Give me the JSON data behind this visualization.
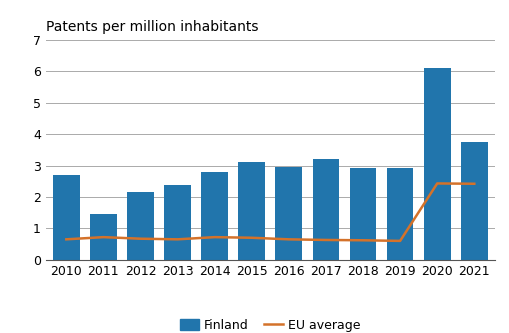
{
  "years": [
    2010,
    2011,
    2012,
    2013,
    2014,
    2015,
    2016,
    2017,
    2018,
    2019,
    2020,
    2021
  ],
  "finland": [
    2.7,
    1.45,
    2.15,
    2.38,
    2.78,
    3.1,
    2.95,
    3.2,
    2.93,
    2.93,
    6.1,
    3.75
  ],
  "eu_average": [
    0.65,
    0.72,
    0.67,
    0.65,
    0.72,
    0.7,
    0.65,
    0.63,
    0.62,
    0.6,
    2.43,
    2.42
  ],
  "bar_color": "#2175AC",
  "line_color": "#D4722A",
  "title": "Patents per million inhabitants",
  "ylim": [
    0,
    7
  ],
  "yticks": [
    0,
    1,
    2,
    3,
    4,
    5,
    6,
    7
  ],
  "legend_finland": "Finland",
  "legend_eu": "EU average",
  "background_color": "#ffffff",
  "grid_color": "#aaaaaa",
  "title_fontsize": 10,
  "tick_fontsize": 9,
  "legend_fontsize": 9
}
